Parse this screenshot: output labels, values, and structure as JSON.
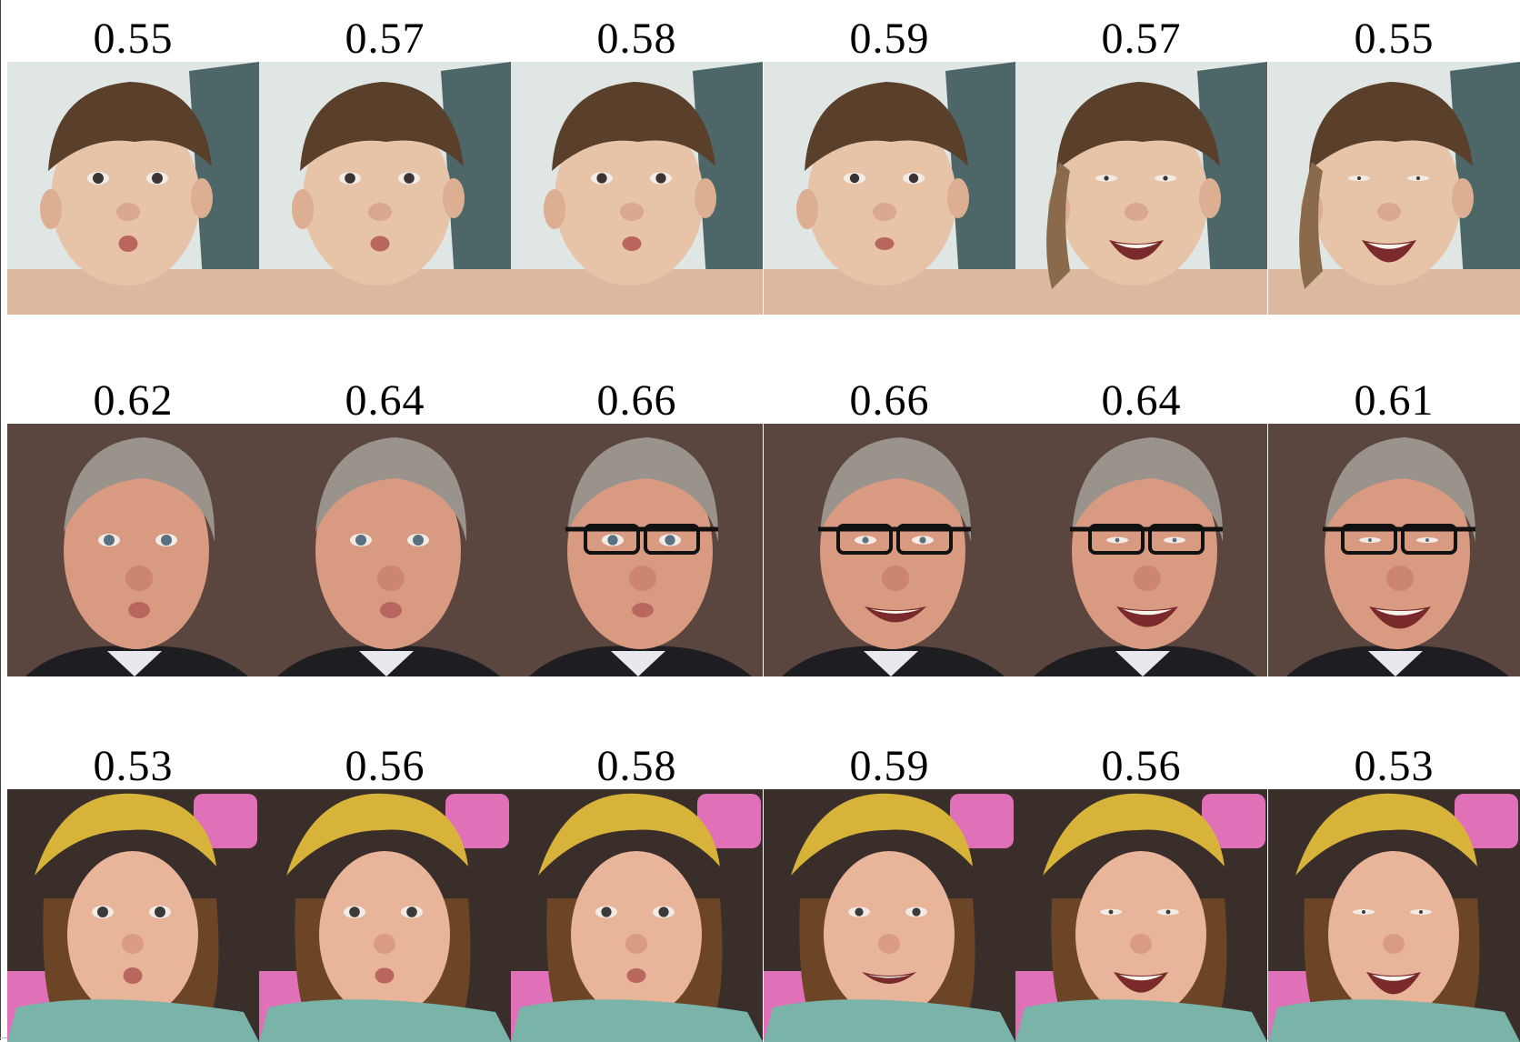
{
  "rows": [
    {
      "subject": "toddler",
      "scores": [
        "0.55",
        "0.57",
        "0.58",
        "0.59",
        "0.57",
        "0.55"
      ],
      "smile": [
        0.0,
        0.05,
        0.1,
        0.2,
        0.85,
        1.0
      ]
    },
    {
      "subject": "older-man",
      "scores": [
        "0.62",
        "0.64",
        "0.66",
        "0.66",
        "0.64",
        "0.61"
      ],
      "smile": [
        0.0,
        0.0,
        0.1,
        0.6,
        0.9,
        1.0
      ],
      "glasses": [
        false,
        false,
        true,
        true,
        true,
        true
      ]
    },
    {
      "subject": "girl",
      "scores": [
        "0.53",
        "0.56",
        "0.58",
        "0.59",
        "0.56",
        "0.53"
      ],
      "smile": [
        0.0,
        0.05,
        0.1,
        0.35,
        0.9,
        1.0
      ]
    }
  ],
  "colors": {
    "toddler_bg": "#dfe6e4",
    "toddler_skin": "#e7c4a8",
    "toddler_hair": "#5a3f2a",
    "man_bg": "#5a463f",
    "man_skin": "#d99a82",
    "man_hair": "#9a938c",
    "man_suit": "#1e1e22",
    "girl_bg": "#3a2e2a",
    "girl_pink": "#e070b8",
    "girl_headband": "#d8b33a",
    "girl_skin": "#e8b49a",
    "girl_hair": "#6b4526"
  }
}
